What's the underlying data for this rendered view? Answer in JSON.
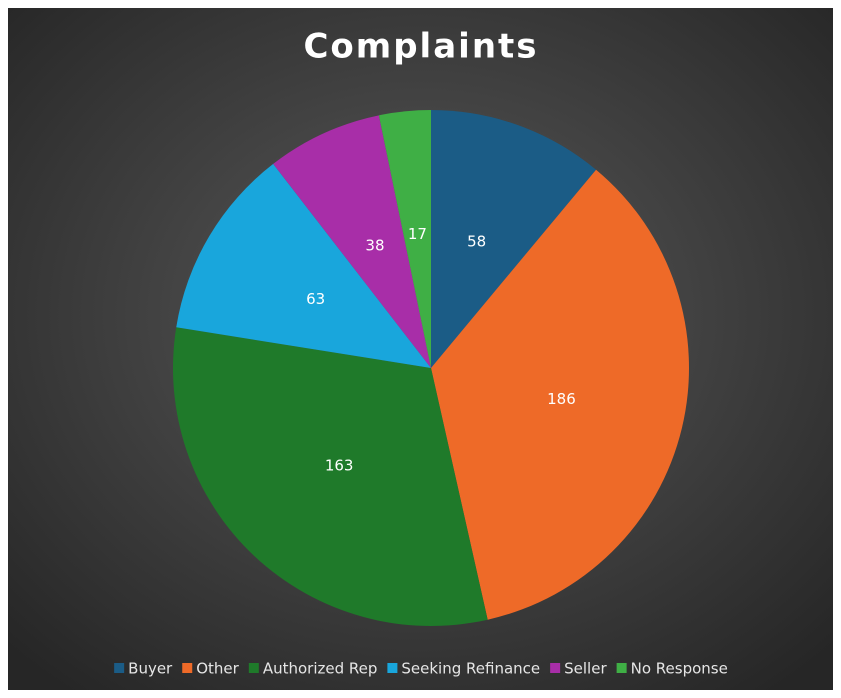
{
  "chart_data": {
    "type": "pie",
    "title": "Complaints",
    "categories": [
      "Buyer",
      "Other",
      "Authorized Rep",
      "Seeking Refinance",
      "Seller",
      "No Response"
    ],
    "values": [
      58,
      186,
      163,
      63,
      38,
      17
    ],
    "colors": [
      "#1b5c86",
      "#ee6a28",
      "#1f7a2a",
      "#19a6dc",
      "#a82ea8",
      "#3faf45"
    ],
    "legend": "bottom"
  }
}
